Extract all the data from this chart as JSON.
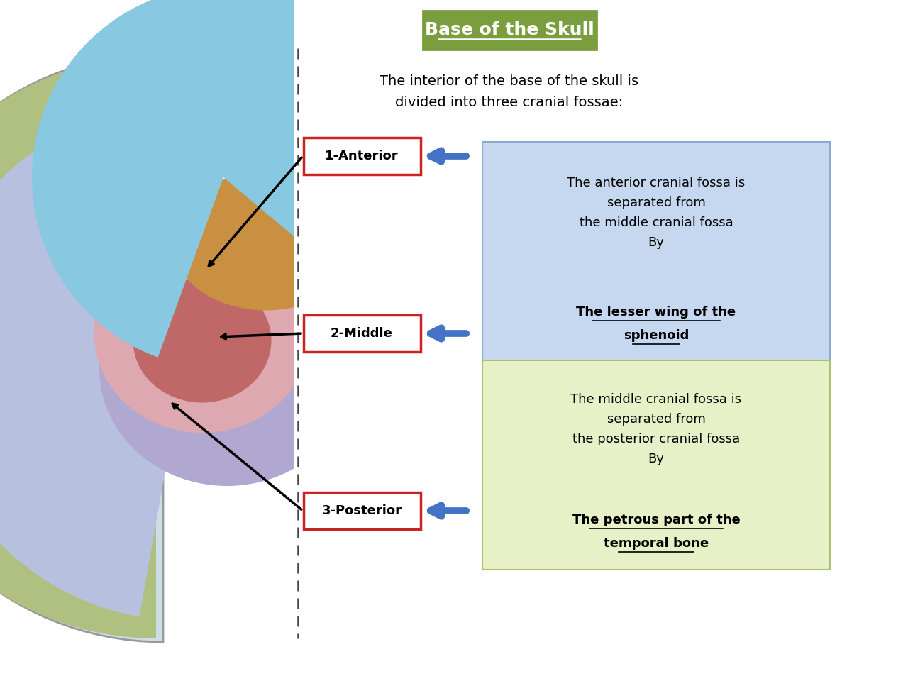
{
  "bg_color": "#ffffff",
  "title": "Base of the Skull",
  "title_bg": "#7a9e3e",
  "title_text_color": "#ffffff",
  "subtitle_line1": "The interior of the base of the skull is",
  "subtitle_line2": "divided into three cranial fossae:",
  "label1": "1-Anterior",
  "label2": "2-Middle",
  "label3": "3-Posterior",
  "label_edge": "#cc2222",
  "label_text": "#000000",
  "box1_lines": [
    "The anterior cranial fossa is",
    "separated from",
    "the middle cranial fossa",
    "By"
  ],
  "box1_bold": [
    "The lesser wing of the",
    "sphenoid"
  ],
  "box1_bg": "#c5d8f0",
  "box1_edge": "#8aaad0",
  "box2_lines": [
    "The middle cranial fossa is",
    "separated from",
    "the posterior cranial fossa",
    "By"
  ],
  "box2_bold": [
    "The petrous part of the",
    "temporal bone"
  ],
  "box2_bg": "#e8f0c8",
  "box2_edge": "#a8c070",
  "arrow_color": "#4472c4",
  "line_color": "#000000",
  "skull_colors": {
    "outer": "#ccdde8",
    "lateral_green": "#b0c080",
    "posterior_lavender": "#b0a8d0",
    "posterior_blue": "#b8c0e0",
    "middle_pink": "#dea8b0",
    "middle_red": "#c06868",
    "sphenoid_orange": "#c89040",
    "anterior_blue": "#88c8e0"
  }
}
